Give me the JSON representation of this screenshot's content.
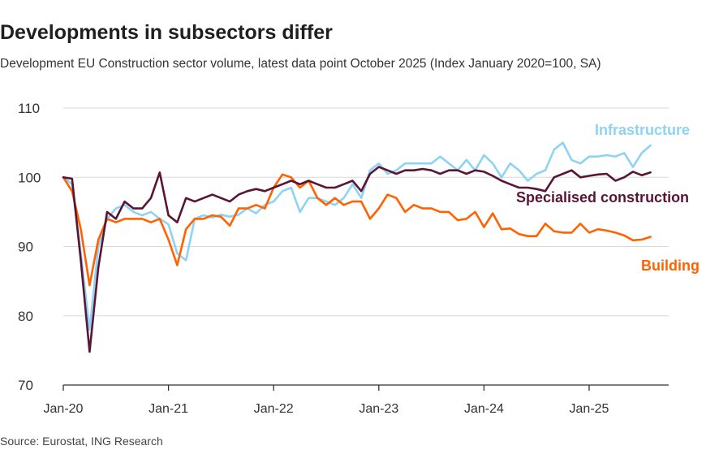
{
  "header": {
    "title": "Developments in subsectors differ",
    "subtitle": "Development EU Construction sector volume, latest data point October 2025 (Index January 2020=100, SA)",
    "source": "Source: Eurostat, ING Research"
  },
  "chart_data": {
    "type": "line",
    "title": "Developments in subsectors differ",
    "xlabel": "",
    "ylabel": "",
    "ylim": [
      70,
      110
    ],
    "yticks": [
      "70",
      "80",
      "90",
      "100",
      "110"
    ],
    "xticks": [
      "Jan-20",
      "Jan-21",
      "Jan-22",
      "Jan-23",
      "Jan-24",
      "Jan-25"
    ],
    "grid": true,
    "x_start": "2020-01",
    "x_end": "2025-10",
    "series": [
      {
        "name": "Infrastructure",
        "color": "#8fd3f4",
        "values": [
          100,
          99,
          89,
          78,
          90,
          94,
          95.5,
          96,
          95,
          94.5,
          95,
          94,
          93.2,
          89,
          88,
          94,
          94.5,
          94.2,
          94.6,
          94.3,
          94.6,
          95.5,
          94.8,
          96,
          96.5,
          98,
          98.5,
          95,
          97,
          97,
          96.5,
          96,
          97,
          99,
          97,
          101,
          102,
          100.5,
          101,
          102,
          102,
          102,
          102,
          103,
          102,
          101,
          102.5,
          101,
          103.2,
          102,
          100,
          102,
          101,
          99.5,
          100.5,
          101,
          104,
          105,
          102.5,
          102,
          103,
          103,
          103.2,
          103,
          103.5,
          101.5,
          103.5,
          104.6
        ]
      },
      {
        "name": "Specialised construction",
        "color": "#5a1434",
        "values": [
          100,
          99.8,
          88,
          74.8,
          87,
          95,
          94,
          96.5,
          95.5,
          95.5,
          97,
          100.7,
          94.5,
          93.5,
          97,
          96.5,
          97,
          97.5,
          97,
          96.5,
          97.5,
          98,
          98.3,
          98,
          98.5,
          99,
          99.5,
          99,
          99.5,
          99,
          98.5,
          98.5,
          99,
          99.5,
          98,
          100.5,
          101.5,
          101,
          100.5,
          101,
          101,
          101.2,
          101,
          100.5,
          101,
          101,
          100.5,
          101,
          100.8,
          100.2,
          99.5,
          99,
          98.5,
          98.5,
          98.3,
          98,
          100,
          100.5,
          101,
          100,
          100.2,
          100.4,
          100.5,
          99.5,
          100,
          100.8,
          100.3,
          100.7
        ]
      },
      {
        "name": "Building",
        "color": "#ff6200",
        "values": [
          100,
          98,
          92.5,
          84.4,
          91,
          94,
          93.5,
          94,
          94,
          94,
          93.5,
          94,
          91,
          87.3,
          92.5,
          94,
          94,
          94.5,
          94.3,
          93,
          95.5,
          95.5,
          96,
          95.5,
          98.5,
          100.4,
          100,
          98.5,
          99.5,
          97,
          96,
          97,
          96,
          96.5,
          96.5,
          94,
          95.5,
          97.5,
          97,
          95,
          96,
          95.5,
          95.5,
          95,
          95,
          93.8,
          94,
          95,
          92.8,
          94.8,
          92.5,
          92.6,
          91.8,
          91.5,
          91.5,
          93.3,
          92.2,
          92,
          92,
          93.3,
          92,
          92.5,
          92.3,
          92,
          91.6,
          90.9,
          91,
          91.4
        ]
      }
    ]
  }
}
